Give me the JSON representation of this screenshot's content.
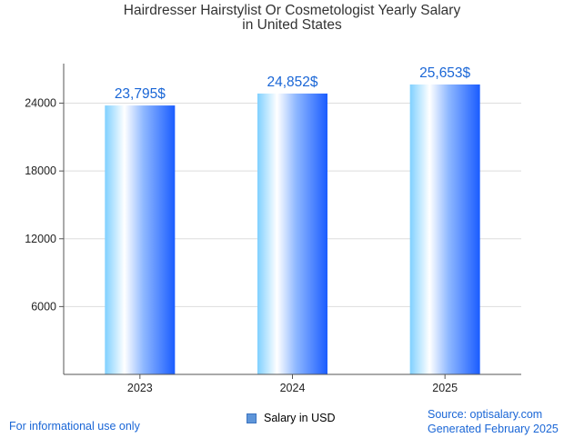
{
  "chart_data": {
    "type": "bar",
    "title": [
      "Hairdresser Hairstylist Or Cosmetologist Yearly Salary",
      "in United States"
    ],
    "categories": [
      "2023",
      "2024",
      "2025"
    ],
    "series": [
      {
        "name": "Salary in USD",
        "values": [
          23795,
          24852,
          25653
        ]
      }
    ],
    "data_labels": [
      "23,795$",
      "24,852$",
      "25,653$"
    ],
    "y_ticks": [
      6000,
      12000,
      18000,
      24000
    ],
    "ylim": [
      0,
      27500
    ],
    "xlabel": "",
    "ylabel": "",
    "grid": true,
    "legend_position": "bottom-center"
  },
  "footer": {
    "disclaimer": "For informational use only",
    "source": "Source: optisalary.com",
    "generated": "Generated February 2025"
  },
  "colors": {
    "bar_light": "#c8ebff",
    "bar_mid": "#5ec2ff",
    "bar_dark": "#1a5cff",
    "data_label": "#1a66d6",
    "axis": "#555555",
    "grid": "#dddddd"
  }
}
